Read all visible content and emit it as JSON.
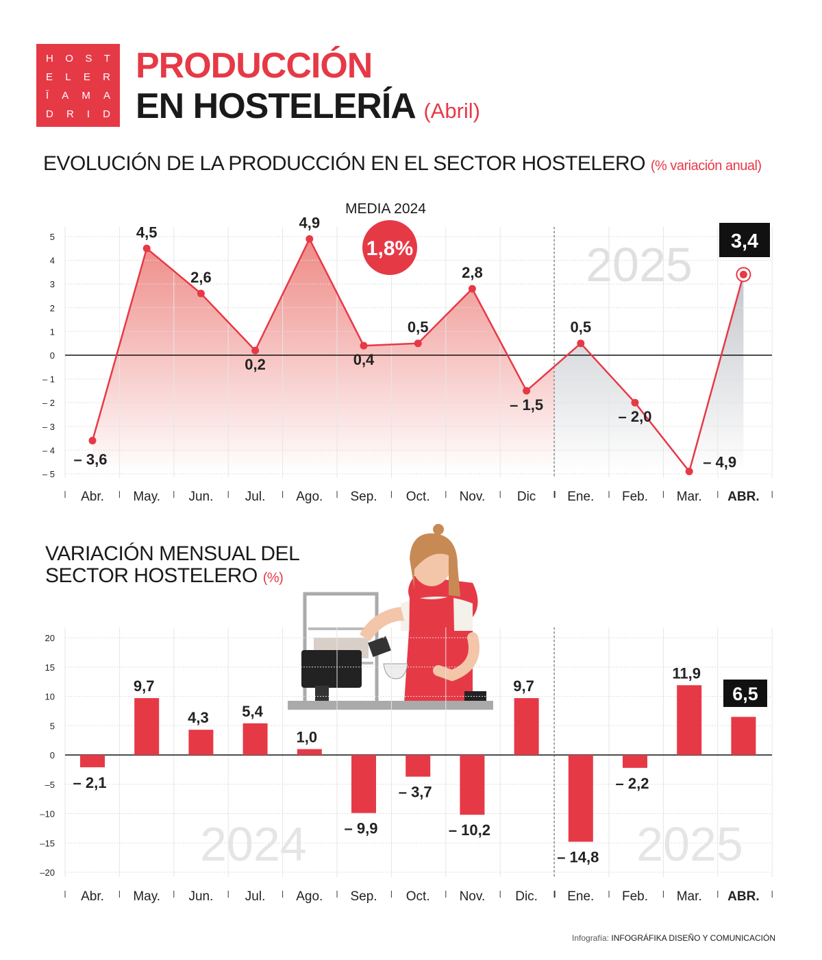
{
  "logo": {
    "rows": [
      [
        "H",
        "O",
        "S",
        "T"
      ],
      [
        "E",
        "L",
        "E",
        "R"
      ],
      [
        "Ī",
        "A",
        "M",
        "A"
      ],
      [
        "D",
        "R",
        "I",
        "D"
      ]
    ]
  },
  "title": {
    "line1": "PRODUCCIÓN",
    "line2": "EN HOSTELERÍA",
    "period": "(Abril)"
  },
  "colors": {
    "accent": "#e63946",
    "dark": "#111111",
    "grey_fill": "#c9cbd0"
  },
  "chart_data": [
    {
      "type": "line",
      "title": "EVOLUCIÓN DE LA PRODUCCIÓN EN EL SECTOR HOSTELERO",
      "subtitle": "(% variación anual)",
      "categories": [
        "Abr.",
        "May.",
        "Jun.",
        "Jul.",
        "Ago.",
        "Sep.",
        "Oct.",
        "Nov.",
        "Dic",
        "Ene.",
        "Feb.",
        "Mar.",
        "ABR."
      ],
      "values": [
        -3.6,
        4.5,
        2.6,
        0.2,
        4.9,
        0.4,
        0.5,
        2.8,
        -1.5,
        0.5,
        -2.0,
        -4.9,
        3.4
      ],
      "labels": [
        "– 3,6",
        "4,5",
        "2,6",
        "0,2",
        "4,9",
        "0,4",
        "0,5",
        "2,8",
        "– 1,5",
        "0,5",
        "– 2,0",
        "– 4,9",
        "3,4"
      ],
      "yticks": [
        5,
        4,
        3,
        2,
        1,
        0,
        -1,
        -2,
        -3,
        -4,
        -5
      ],
      "ytick_labels": [
        "5",
        "4",
        "3",
        "2",
        "1",
        "0",
        "– 1",
        "– 2",
        "– 3",
        "– 4",
        "– 5"
      ],
      "ylim": [
        -5,
        5
      ],
      "year_labels": [
        "2024",
        "2025"
      ],
      "media_label": "MEDIA 2024",
      "media_value": "1,8%",
      "grid": true
    },
    {
      "type": "bar",
      "title": "VARIACIÓN MENSUAL DEL SECTOR HOSTELERO",
      "subtitle": "(%)",
      "categories": [
        "Abr.",
        "May.",
        "Jun.",
        "Jul.",
        "Ago.",
        "Sep.",
        "Oct.",
        "Nov.",
        "Dic.",
        "Ene.",
        "Feb.",
        "Mar.",
        "ABR."
      ],
      "values": [
        -2.1,
        9.7,
        4.3,
        5.4,
        1.0,
        -9.9,
        -3.7,
        -10.2,
        9.7,
        -14.8,
        -2.2,
        11.9,
        6.5
      ],
      "labels": [
        "– 2,1",
        "9,7",
        "4,3",
        "5,4",
        "1,0",
        "– 9,9",
        "– 3,7",
        "– 10,2",
        "9,7",
        "– 14,8",
        "– 2,2",
        "11,9",
        "6,5"
      ],
      "yticks": [
        20,
        15,
        10,
        5,
        0,
        -5,
        -10,
        -15,
        -20
      ],
      "ytick_labels": [
        "20",
        "15",
        "10",
        "5",
        "0",
        "–5",
        "–10",
        "–15",
        "–20"
      ],
      "ylim": [
        -20,
        20
      ],
      "year_labels": [
        "2024",
        "2025"
      ],
      "grid": true
    }
  ],
  "credit": {
    "prefix": "Infografía:",
    "name": "INFOGRÁFIKA DISEÑO Y COMUNICACIÓN"
  }
}
